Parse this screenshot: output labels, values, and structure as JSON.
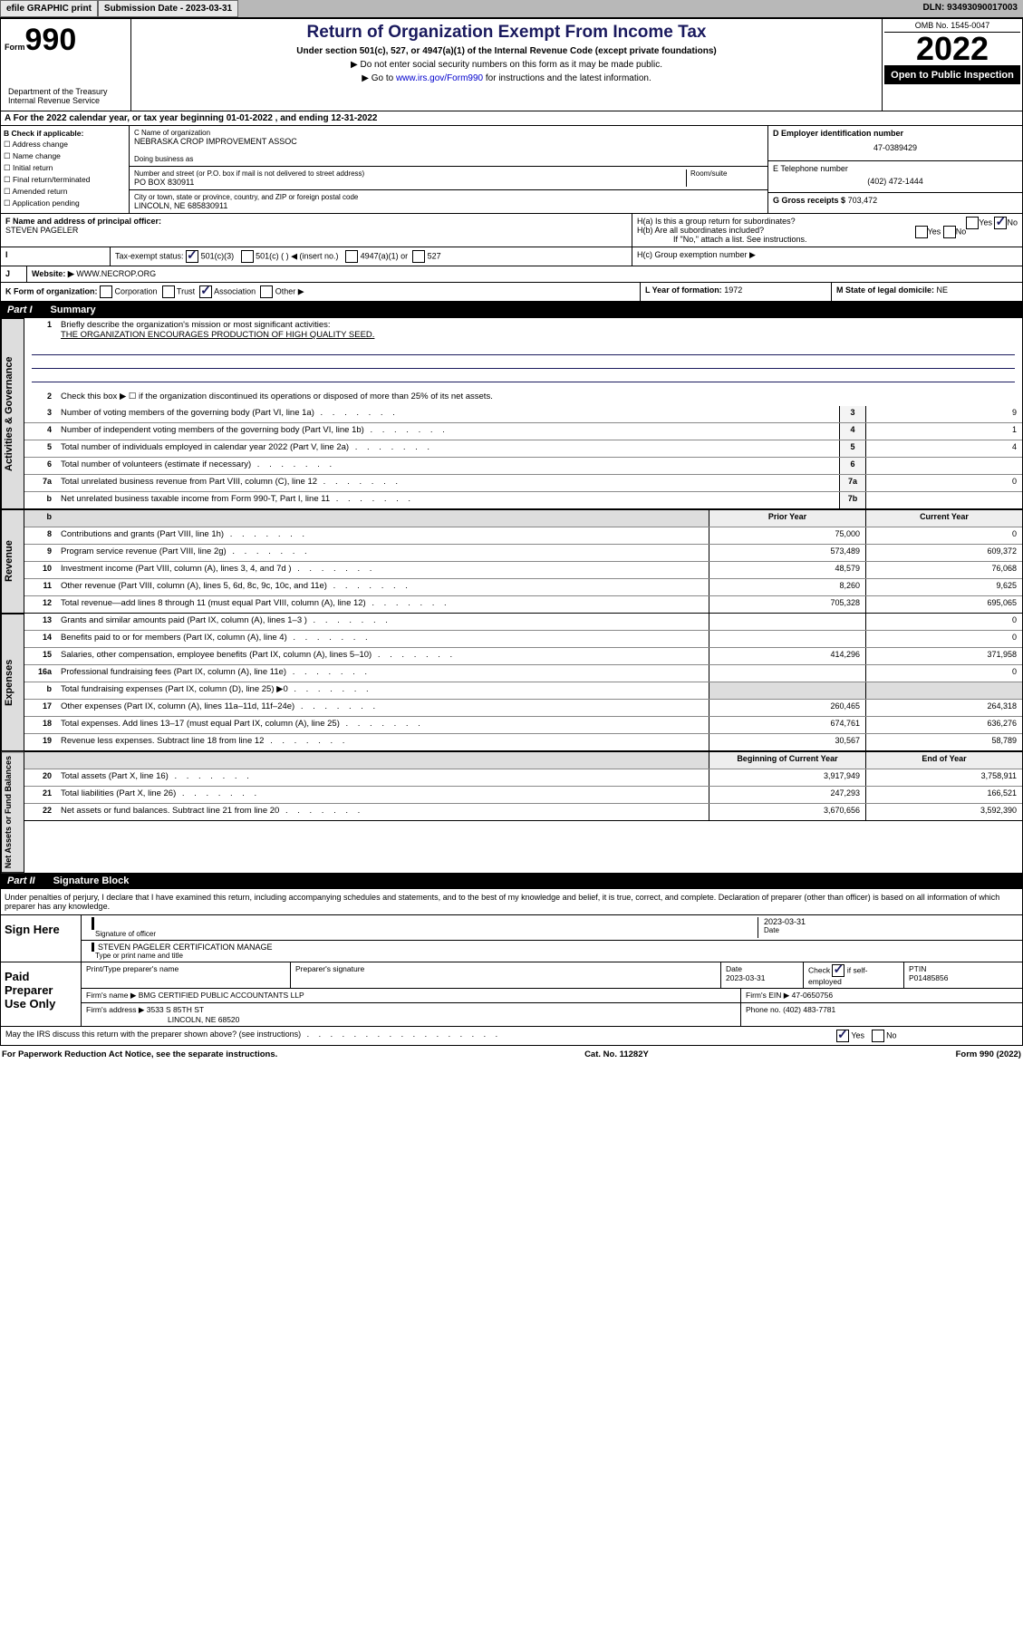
{
  "topbar": {
    "efile": "efile GRAPHIC print",
    "submission_label": "Submission Date - 2023-03-31",
    "dln": "DLN: 93493090017003"
  },
  "header": {
    "form_label": "Form",
    "form_num": "990",
    "title": "Return of Organization Exempt From Income Tax",
    "subtitle": "Under section 501(c), 527, or 4947(a)(1) of the Internal Revenue Code (except private foundations)",
    "instr1": "▶ Do not enter social security numbers on this form as it may be made public.",
    "instr2_pre": "▶ Go to ",
    "instr2_link": "www.irs.gov/Form990",
    "instr2_post": " for instructions and the latest information.",
    "omb": "OMB No. 1545-0047",
    "year": "2022",
    "open": "Open to Public Inspection",
    "dept": "Department of the Treasury Internal Revenue Service"
  },
  "line_a": "For the 2022 calendar year, or tax year beginning 01-01-2022   , and ending 12-31-2022",
  "box_b": {
    "hdr": "B Check if applicable:",
    "opts": [
      "Address change",
      "Name change",
      "Initial return",
      "Final return/terminated",
      "Amended return",
      "Application pending"
    ]
  },
  "box_c": {
    "name_label": "C Name of organization",
    "name": "NEBRASKA CROP IMPROVEMENT ASSOC",
    "dba_label": "Doing business as",
    "addr_label": "Number and street (or P.O. box if mail is not delivered to street address)",
    "room_label": "Room/suite",
    "addr": "PO BOX 830911",
    "city_label": "City or town, state or province, country, and ZIP or foreign postal code",
    "city": "LINCOLN, NE  685830911"
  },
  "box_d": {
    "ein_label": "D Employer identification number",
    "ein": "47-0389429",
    "tel_label": "E Telephone number",
    "tel": "(402) 472-1444",
    "gross_label": "G Gross receipts $",
    "gross": "703,472"
  },
  "box_f": {
    "label": "F Name and address of principal officer:",
    "name": "STEVEN PAGELER"
  },
  "box_h": {
    "a": "H(a)  Is this a group return for subordinates?",
    "a_yes": "Yes",
    "a_no": "No",
    "b": "H(b)  Are all subordinates included?",
    "b_note": "If \"No,\" attach a list. See instructions.",
    "c": "H(c)  Group exemption number ▶"
  },
  "box_i": {
    "label": "Tax-exempt status:",
    "o1": "501(c)(3)",
    "o2": "501(c) (   ) ◀ (insert no.)",
    "o3": "4947(a)(1) or",
    "o4": "527"
  },
  "box_j": {
    "label": "Website: ▶",
    "val": "WWW.NECROP.ORG"
  },
  "box_k": {
    "label": "K Form of organization:",
    "corp": "Corporation",
    "trust": "Trust",
    "assoc": "Association",
    "other": "Other ▶"
  },
  "box_l": {
    "label": "L Year of formation:",
    "val": "1972"
  },
  "box_m": {
    "label": "M State of legal domicile:",
    "val": "NE"
  },
  "part1": {
    "hdr": "Part I",
    "title": "Summary",
    "l1": "Briefly describe the organization's mission or most significant activities:",
    "l1_val": "THE ORGANIZATION ENCOURAGES PRODUCTION OF HIGH QUALITY SEED.",
    "l2": "Check this box ▶ ☐  if the organization discontinued its operations or disposed of more than 25% of its net assets.",
    "lines_gov": [
      {
        "n": "3",
        "t": "Number of voting members of the governing body (Part VI, line 1a)",
        "box": "3",
        "v": "9"
      },
      {
        "n": "4",
        "t": "Number of independent voting members of the governing body (Part VI, line 1b)",
        "box": "4",
        "v": "1"
      },
      {
        "n": "5",
        "t": "Total number of individuals employed in calendar year 2022 (Part V, line 2a)",
        "box": "5",
        "v": "4"
      },
      {
        "n": "6",
        "t": "Total number of volunteers (estimate if necessary)",
        "box": "6",
        "v": ""
      },
      {
        "n": "7a",
        "t": "Total unrelated business revenue from Part VIII, column (C), line 12",
        "box": "7a",
        "v": "0"
      },
      {
        "n": "b",
        "t": "Net unrelated business taxable income from Form 990-T, Part I, line 11",
        "box": "7b",
        "v": ""
      }
    ],
    "col_prior": "Prior Year",
    "col_curr": "Current Year",
    "lines_rev": [
      {
        "n": "8",
        "t": "Contributions and grants (Part VIII, line 1h)",
        "p": "75,000",
        "c": "0"
      },
      {
        "n": "9",
        "t": "Program service revenue (Part VIII, line 2g)",
        "p": "573,489",
        "c": "609,372"
      },
      {
        "n": "10",
        "t": "Investment income (Part VIII, column (A), lines 3, 4, and 7d )",
        "p": "48,579",
        "c": "76,068"
      },
      {
        "n": "11",
        "t": "Other revenue (Part VIII, column (A), lines 5, 6d, 8c, 9c, 10c, and 11e)",
        "p": "8,260",
        "c": "9,625"
      },
      {
        "n": "12",
        "t": "Total revenue—add lines 8 through 11 (must equal Part VIII, column (A), line 12)",
        "p": "705,328",
        "c": "695,065"
      }
    ],
    "lines_exp": [
      {
        "n": "13",
        "t": "Grants and similar amounts paid (Part IX, column (A), lines 1–3 )",
        "p": "",
        "c": "0"
      },
      {
        "n": "14",
        "t": "Benefits paid to or for members (Part IX, column (A), line 4)",
        "p": "",
        "c": "0"
      },
      {
        "n": "15",
        "t": "Salaries, other compensation, employee benefits (Part IX, column (A), lines 5–10)",
        "p": "414,296",
        "c": "371,958"
      },
      {
        "n": "16a",
        "t": "Professional fundraising fees (Part IX, column (A), line 11e)",
        "p": "",
        "c": "0"
      },
      {
        "n": "b",
        "t": "Total fundraising expenses (Part IX, column (D), line 25) ▶0",
        "p": "",
        "c": "",
        "grey": true
      },
      {
        "n": "17",
        "t": "Other expenses (Part IX, column (A), lines 11a–11d, 11f–24e)",
        "p": "260,465",
        "c": "264,318"
      },
      {
        "n": "18",
        "t": "Total expenses. Add lines 13–17 (must equal Part IX, column (A), line 25)",
        "p": "674,761",
        "c": "636,276"
      },
      {
        "n": "19",
        "t": "Revenue less expenses. Subtract line 18 from line 12",
        "p": "30,567",
        "c": "58,789"
      }
    ],
    "col_begin": "Beginning of Current Year",
    "col_end": "End of Year",
    "lines_net": [
      {
        "n": "20",
        "t": "Total assets (Part X, line 16)",
        "p": "3,917,949",
        "c": "3,758,911"
      },
      {
        "n": "21",
        "t": "Total liabilities (Part X, line 26)",
        "p": "247,293",
        "c": "166,521"
      },
      {
        "n": "22",
        "t": "Net assets or fund balances. Subtract line 21 from line 20",
        "p": "3,670,656",
        "c": "3,592,390"
      }
    ]
  },
  "part2": {
    "hdr": "Part II",
    "title": "Signature Block",
    "decl": "Under penalties of perjury, I declare that I have examined this return, including accompanying schedules and statements, and to the best of my knowledge and belief, it is true, correct, and complete. Declaration of preparer (other than officer) is based on all information of which preparer has any knowledge."
  },
  "sign": {
    "left": "Sign Here",
    "sig_label": "Signature of officer",
    "date": "2023-03-31",
    "date_label": "Date",
    "name": "STEVEN PAGELER  CERTIFICATION MANAGE",
    "name_label": "Type or print name and title"
  },
  "prep": {
    "left": "Paid Preparer Use Only",
    "r1": {
      "c1": "Print/Type preparer's name",
      "c2": "Preparer's signature",
      "c3_l": "Date",
      "c3": "2023-03-31",
      "c4": "Check ☑ if self-employed",
      "c5_l": "PTIN",
      "c5": "P01485856"
    },
    "r2": {
      "l": "Firm's name    ▶",
      "v": "BMG CERTIFIED PUBLIC ACCOUNTANTS LLP",
      "ein_l": "Firm's EIN ▶",
      "ein": "47-0650756"
    },
    "r3": {
      "l": "Firm's address ▶",
      "v1": "3533 S 85TH ST",
      "v2": "LINCOLN, NE  68520",
      "ph_l": "Phone no.",
      "ph": "(402) 483-7781"
    },
    "may": "May the IRS discuss this return with the preparer shown above? (see instructions)",
    "yes": "Yes",
    "no": "No"
  },
  "footer": {
    "left": "For Paperwork Reduction Act Notice, see the separate instructions.",
    "mid": "Cat. No. 11282Y",
    "right": "Form 990 (2022)"
  },
  "vtabs": {
    "gov": "Activities & Governance",
    "rev": "Revenue",
    "exp": "Expenses",
    "net": "Net Assets or Fund Balances"
  }
}
